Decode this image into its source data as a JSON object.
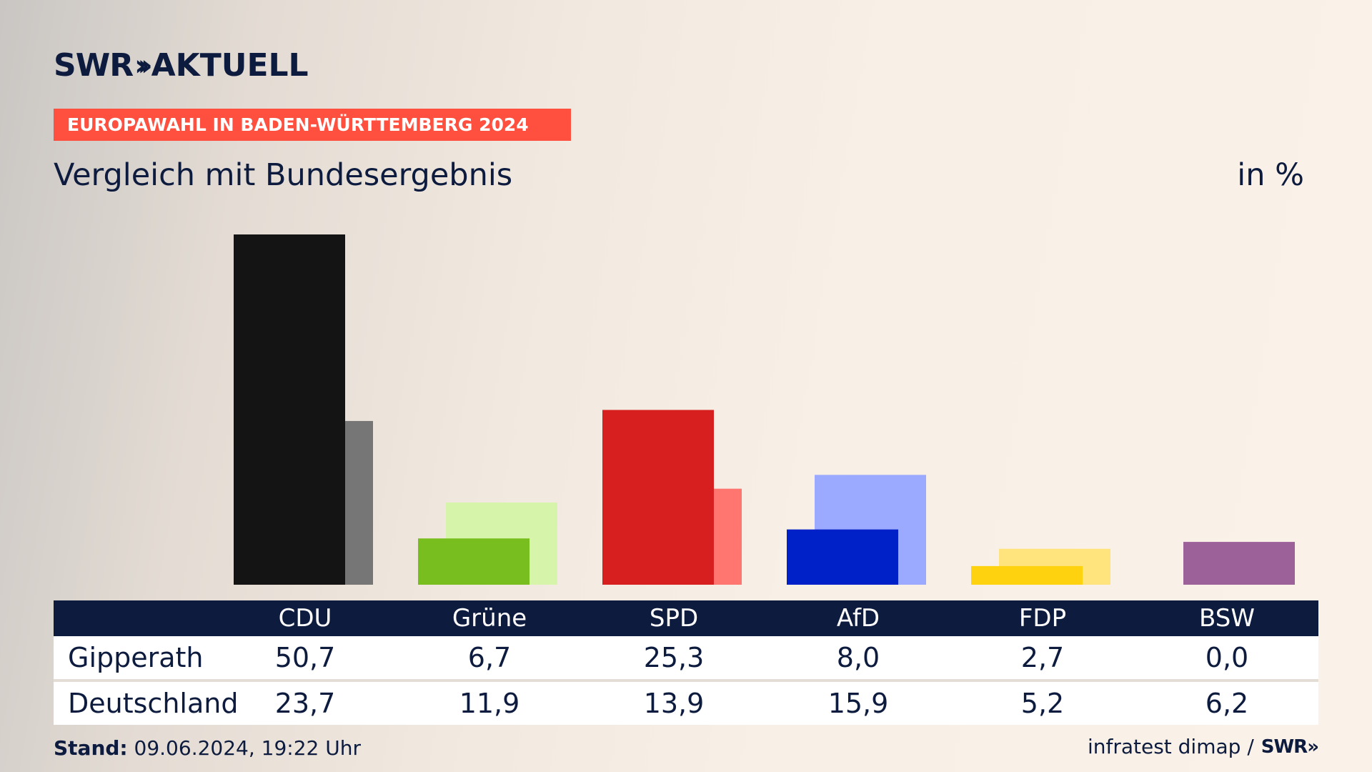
{
  "header": {
    "logo_text": "SWR",
    "logo_chevrons": "»",
    "logo_suffix": "AKTUELL",
    "kicker": "EUROPAWAHL IN BADEN-WÜRTTEMBERG 2024",
    "subtitle": "Vergleich mit Bundesergebnis",
    "unit": "in %"
  },
  "chart_data": {
    "type": "bar",
    "categories": [
      "CDU",
      "Grüne",
      "SPD",
      "AfD",
      "FDP",
      "BSW"
    ],
    "series": [
      {
        "name": "Gipperath",
        "values": [
          50.7,
          6.7,
          25.3,
          8.0,
          2.7,
          0.0
        ],
        "colors": [
          "#141414",
          "#78be1e",
          "#d71f1f",
          "#0021c8",
          "#ffd20f",
          "#9d6199"
        ]
      },
      {
        "name": "Deutschland",
        "values": [
          23.7,
          11.9,
          13.9,
          15.9,
          5.2,
          6.2
        ],
        "colors": [
          "#767676",
          "#d7f5aa",
          "#ff7670",
          "#9ba9ff",
          "#ffe47d",
          "#9d6199"
        ]
      }
    ],
    "value_labels": {
      "Gipperath": [
        "50,7",
        "6,7",
        "25,3",
        "8,0",
        "2,7",
        "0,0"
      ],
      "Deutschland": [
        "23,7",
        "11,9",
        "13,9",
        "15,9",
        "5,2",
        "6,2"
      ]
    },
    "ylim": [
      0,
      50.7
    ],
    "grid": false
  },
  "footer": {
    "stand_label": "Stand:",
    "stand_value": "09.06.2024, 19:22 Uhr",
    "source": "infratest dimap /",
    "source_logo": "SWR»"
  }
}
